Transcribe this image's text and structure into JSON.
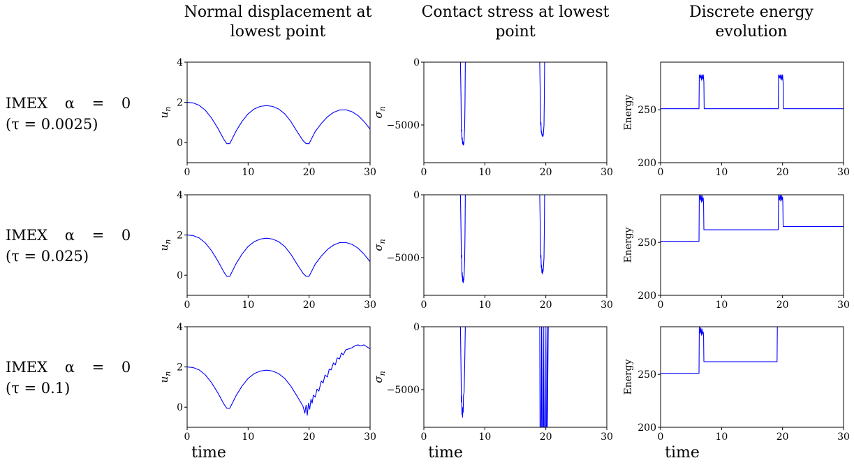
{
  "columns": [
    {
      "title_line1": "Normal displacement at",
      "title_line2": "lowest point"
    },
    {
      "title_line1": "Contact stress at lowest",
      "title_line2": "point"
    },
    {
      "title_line1": "Discrete energy",
      "title_line2": "evolution"
    }
  ],
  "rows": [
    {
      "line1": "IMEX  α  =  0",
      "line2": "(τ = 0.0025)"
    },
    {
      "line1": "IMEX  α  =  0",
      "line2": "(τ = 0.025)"
    },
    {
      "line1": "IMEX  α  =  0",
      "line2": "(τ = 0.1)"
    }
  ],
  "x_title": "time",
  "colors": {
    "line": "#0000ff",
    "axes": "#000000"
  },
  "chart_data": [
    {
      "type": "line",
      "row": 0,
      "col": 0,
      "ylabel": "u_n",
      "xlim": [
        0,
        30
      ],
      "ylim": [
        -1,
        4
      ],
      "xticks": [
        0,
        10,
        20,
        30
      ],
      "yticks": [
        0,
        2,
        4
      ],
      "series": [
        {
          "x": [
            0,
            1,
            2,
            3,
            4,
            5,
            6,
            6.5,
            7,
            8,
            9,
            10,
            11,
            12,
            13,
            14,
            15,
            16,
            17,
            18,
            19,
            19.5,
            20,
            21,
            22,
            23,
            24,
            25,
            26,
            27,
            28,
            29,
            30
          ],
          "y": [
            2,
            1.97,
            1.85,
            1.6,
            1.22,
            0.73,
            0.17,
            -0.05,
            -0.05,
            0.56,
            1.05,
            1.43,
            1.67,
            1.8,
            1.84,
            1.8,
            1.67,
            1.43,
            1.05,
            0.56,
            0.1,
            -0.05,
            -0.05,
            0.55,
            0.95,
            1.28,
            1.5,
            1.62,
            1.63,
            1.54,
            1.35,
            1.05,
            0.67
          ]
        }
      ]
    },
    {
      "type": "line",
      "row": 0,
      "col": 1,
      "ylabel": "σ_n",
      "xlim": [
        0,
        30
      ],
      "ylim": [
        -8000,
        0
      ],
      "xticks": [
        0,
        10,
        20,
        30
      ],
      "yticks": [
        0,
        -5000
      ],
      "series": [
        {
          "x": [
            0,
            6.0,
            6.1,
            6.15,
            6.2,
            6.25,
            6.3,
            6.35,
            6.4,
            6.45,
            6.5,
            6.55,
            6.6,
            6.7,
            6.75,
            6.8,
            7.0,
            19.0,
            19.1,
            19.15,
            19.2,
            19.25,
            19.3,
            19.35,
            19.4,
            19.45,
            19.5,
            19.55,
            19.6,
            19.7,
            19.75,
            19.8,
            30
          ],
          "y": [
            0,
            0,
            -3000,
            -5500,
            -5400,
            -6200,
            -6000,
            -6500,
            -6300,
            -6600,
            -6400,
            -6550,
            -6200,
            -5000,
            -3000,
            0,
            0,
            0,
            -3000,
            -5000,
            -4800,
            -5600,
            -5500,
            -5800,
            -5700,
            -5900,
            -5800,
            -5900,
            -5700,
            -5000,
            -3000,
            0,
            0
          ]
        }
      ]
    },
    {
      "type": "line",
      "row": 0,
      "col": 2,
      "ylabel": "Energy",
      "xlim": [
        0,
        30
      ],
      "ylim": [
        200,
        295
      ],
      "xticks": [
        0,
        10,
        20,
        30
      ],
      "yticks": [
        200,
        250
      ],
      "series": [
        {
          "x": [
            0,
            6.3,
            6.35,
            6.5,
            6.6,
            6.7,
            6.8,
            6.9,
            7.0,
            7.1,
            7.15,
            19.3,
            19.35,
            19.5,
            19.6,
            19.7,
            19.8,
            19.9,
            20.0,
            20.1,
            20.15,
            30
          ],
          "y": [
            251,
            251,
            283,
            280,
            283,
            278,
            283,
            279,
            283,
            276,
            251,
            251,
            283,
            280,
            283,
            279,
            283,
            278,
            283,
            276,
            251,
            251
          ]
        }
      ]
    },
    {
      "type": "line",
      "row": 1,
      "col": 0,
      "ylabel": "u_n",
      "xlim": [
        0,
        30
      ],
      "ylim": [
        -1,
        4
      ],
      "xticks": [
        0,
        10,
        20,
        30
      ],
      "yticks": [
        0,
        2,
        4
      ],
      "series": [
        {
          "x": [
            0,
            1,
            2,
            3,
            4,
            5,
            6,
            6.5,
            7,
            8,
            9,
            10,
            11,
            12,
            13,
            14,
            15,
            16,
            17,
            18,
            19,
            19.5,
            20,
            21,
            22,
            23,
            24,
            25,
            26,
            27,
            28,
            29,
            30
          ],
          "y": [
            2,
            1.97,
            1.85,
            1.6,
            1.22,
            0.73,
            0.17,
            -0.05,
            -0.05,
            0.56,
            1.05,
            1.43,
            1.67,
            1.8,
            1.84,
            1.8,
            1.67,
            1.43,
            1.05,
            0.56,
            0.1,
            -0.05,
            -0.05,
            0.55,
            0.95,
            1.28,
            1.5,
            1.62,
            1.63,
            1.54,
            1.35,
            1.05,
            0.67
          ]
        }
      ]
    },
    {
      "type": "line",
      "row": 1,
      "col": 1,
      "ylabel": "σ_n",
      "xlim": [
        0,
        30
      ],
      "ylim": [
        -8000,
        0
      ],
      "xticks": [
        0,
        10,
        20,
        30
      ],
      "yticks": [
        0,
        -5000
      ],
      "series": [
        {
          "x": [
            0,
            6.0,
            6.1,
            6.15,
            6.2,
            6.25,
            6.3,
            6.35,
            6.4,
            6.45,
            6.5,
            6.55,
            6.6,
            6.7,
            6.75,
            6.8,
            7.0,
            19.0,
            19.1,
            19.15,
            19.2,
            19.25,
            19.3,
            19.35,
            19.4,
            19.45,
            19.5,
            19.55,
            19.6,
            19.7,
            19.75,
            19.8,
            30
          ],
          "y": [
            0,
            0,
            -3000,
            -5000,
            -4800,
            -6500,
            -6200,
            -6900,
            -6500,
            -7000,
            -6700,
            -6800,
            -6400,
            -5000,
            -3000,
            0,
            0,
            0,
            -3000,
            -5000,
            -4800,
            -5800,
            -5600,
            -6200,
            -5900,
            -6300,
            -6000,
            -6100,
            -5800,
            -5000,
            -3000,
            0,
            0
          ]
        }
      ]
    },
    {
      "type": "line",
      "row": 1,
      "col": 2,
      "ylabel": "Energy",
      "xlim": [
        0,
        30
      ],
      "ylim": [
        200,
        295
      ],
      "xticks": [
        0,
        10,
        20,
        30
      ],
      "yticks": [
        200,
        250
      ],
      "series": [
        {
          "x": [
            0,
            6.3,
            6.35,
            6.5,
            6.6,
            6.7,
            6.8,
            6.9,
            7.0,
            7.05,
            7.1,
            19.3,
            19.35,
            19.5,
            19.6,
            19.7,
            19.8,
            19.9,
            20.0,
            20.05,
            20.1,
            30
          ],
          "y": [
            251,
            251,
            295,
            290,
            295,
            288,
            295,
            289,
            292,
            286,
            262,
            262,
            295,
            290,
            295,
            289,
            295,
            290,
            293,
            287,
            265,
            265
          ]
        }
      ]
    },
    {
      "type": "line",
      "row": 2,
      "col": 0,
      "ylabel": "u_n",
      "xlim": [
        0,
        30
      ],
      "ylim": [
        -1,
        4
      ],
      "xticks": [
        0,
        10,
        20,
        30
      ],
      "yticks": [
        0,
        2,
        4
      ],
      "series": [
        {
          "x": [
            0,
            1,
            2,
            3,
            4,
            5,
            6,
            6.5,
            7,
            8,
            9,
            10,
            11,
            12,
            13,
            14,
            15,
            16,
            17,
            18,
            19,
            19.3,
            19.5,
            19.7,
            19.9,
            20.1,
            20.3,
            20.5,
            20.7,
            21,
            21.3,
            21.6,
            22,
            22.3,
            22.6,
            23,
            23.3,
            23.6,
            24,
            24.3,
            24.6,
            25,
            25.3,
            25.6,
            26,
            26.5,
            27,
            27.5,
            28,
            28.5,
            29,
            29.5,
            30
          ],
          "y": [
            2,
            1.97,
            1.85,
            1.6,
            1.22,
            0.73,
            0.17,
            -0.05,
            -0.05,
            0.56,
            1.05,
            1.43,
            1.67,
            1.8,
            1.84,
            1.8,
            1.67,
            1.43,
            1.05,
            0.56,
            0.05,
            -0.3,
            0.1,
            -0.4,
            0.2,
            -0.1,
            0.4,
            0.2,
            0.6,
            0.5,
            0.9,
            0.8,
            1.3,
            1.2,
            1.6,
            1.5,
            1.9,
            1.85,
            2.2,
            2.1,
            2.45,
            2.4,
            2.7,
            2.6,
            2.85,
            2.9,
            2.95,
            3.05,
            3.1,
            3.05,
            3.1,
            3.0,
            2.9
          ]
        }
      ]
    },
    {
      "type": "line",
      "row": 2,
      "col": 1,
      "ylabel": "σ_n",
      "xlim": [
        0,
        30
      ],
      "ylim": [
        -8000,
        0
      ],
      "xticks": [
        0,
        10,
        20,
        30
      ],
      "yticks": [
        0,
        -5000
      ],
      "series": [
        {
          "x": [
            0,
            6.0,
            6.1,
            6.15,
            6.2,
            6.25,
            6.3,
            6.35,
            6.4,
            6.45,
            6.5,
            6.6,
            6.7,
            6.8,
            7.0,
            19.0,
            19.05,
            19.2,
            19.3,
            19.35,
            19.5,
            19.6,
            19.65,
            19.8,
            19.9,
            19.95,
            20.1,
            20.2,
            20.25,
            20.4,
            30
          ],
          "y": [
            0,
            0,
            -3500,
            -6000,
            -5500,
            -7000,
            -6500,
            -7200,
            -6400,
            -6800,
            -5500,
            -5200,
            -3000,
            0,
            0,
            0,
            -8000,
            -8000,
            0,
            -8000,
            -8000,
            0,
            -8000,
            -8000,
            0,
            -8000,
            -8000,
            0,
            -8000,
            0,
            0
          ]
        }
      ]
    },
    {
      "type": "line",
      "row": 2,
      "col": 2,
      "ylabel": "Energy",
      "xlim": [
        0,
        30
      ],
      "ylim": [
        200,
        295
      ],
      "xticks": [
        0,
        10,
        20,
        30
      ],
      "yticks": [
        200,
        250
      ],
      "series": [
        {
          "x": [
            0,
            6.3,
            6.35,
            6.5,
            6.6,
            6.7,
            6.8,
            6.9,
            7.0,
            7.05,
            7.1,
            19.1,
            19.15,
            30
          ],
          "y": [
            251,
            251,
            295,
            289,
            294,
            287,
            293,
            288,
            290,
            286,
            262,
            262,
            295,
            295
          ]
        }
      ]
    }
  ]
}
